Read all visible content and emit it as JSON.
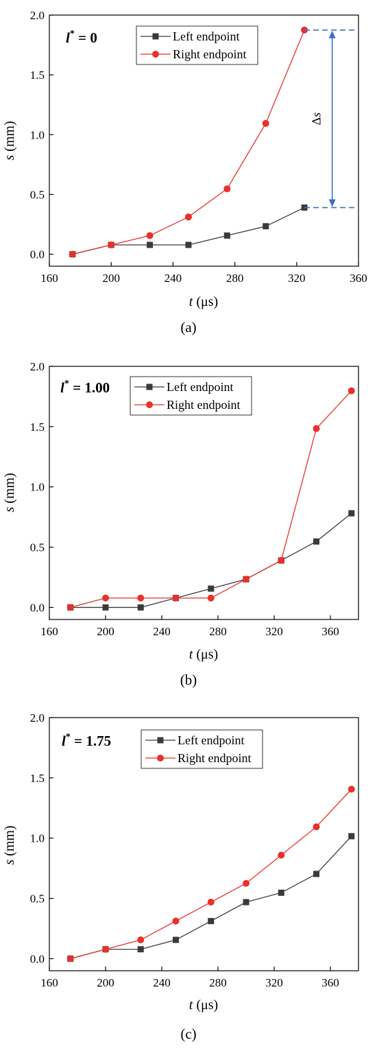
{
  "legend_labels": {
    "left": "Left endpoint",
    "right": "Right endpoint"
  },
  "colors": {
    "left": "#3a3a3a",
    "right": "#e8302c",
    "annotation": "#3a6fc4",
    "axis": "#000000"
  },
  "charts": [
    {
      "panel_label": "(a)",
      "lstar_value": "0",
      "chart_data": {
        "type": "line",
        "xlabel_var": "t",
        "xlabel_unit": "(μs)",
        "ylabel_var": "s",
        "ylabel_unit": "(mm)",
        "xlim": [
          160,
          360
        ],
        "ylim": [
          -0.1,
          2.0
        ],
        "xticks": [
          160,
          200,
          240,
          280,
          320,
          360
        ],
        "yticks": [
          0.0,
          0.5,
          1.0,
          1.5,
          2.0
        ],
        "legend_placement": "top-center",
        "series": [
          {
            "key": "left",
            "name": "Left endpoint",
            "marker": "square",
            "x": [
              175,
              200,
              225,
              250,
              275,
              300,
              325
            ],
            "y": [
              0.0,
              0.078,
              0.078,
              0.078,
              0.156,
              0.234,
              0.39
            ]
          },
          {
            "key": "right",
            "name": "Right endpoint",
            "marker": "circle",
            "x": [
              175,
              200,
              225,
              250,
              275,
              300,
              325
            ],
            "y": [
              0.0,
              0.078,
              0.156,
              0.312,
              0.547,
              1.094,
              1.875
            ]
          }
        ],
        "annotation": {
          "label": "Δs",
          "x_from": 325,
          "x_to": 360,
          "arrow_x": 343,
          "y_low": 0.39,
          "y_high": 1.875
        }
      }
    },
    {
      "panel_label": "(b)",
      "lstar_value": "1.00",
      "chart_data": {
        "type": "line",
        "xlabel_var": "t",
        "xlabel_unit": "(μs)",
        "ylabel_var": "s",
        "ylabel_unit": "(mm)",
        "xlim": [
          160,
          380
        ],
        "ylim": [
          -0.1,
          2.0
        ],
        "xticks": [
          160,
          200,
          240,
          280,
          320,
          360
        ],
        "yticks": [
          0.0,
          0.5,
          1.0,
          1.5,
          2.0
        ],
        "legend_placement": "top-center",
        "series": [
          {
            "key": "left",
            "name": "Left endpoint",
            "marker": "square",
            "x": [
              175,
              200,
              225,
              250,
              275,
              300,
              325,
              350,
              375
            ],
            "y": [
              0.0,
              0.0,
              0.0,
              0.078,
              0.156,
              0.234,
              0.39,
              0.547,
              0.781
            ]
          },
          {
            "key": "right",
            "name": "Right endpoint",
            "marker": "circle",
            "x": [
              175,
              200,
              225,
              250,
              275,
              300,
              325,
              350,
              375
            ],
            "y": [
              0.0,
              0.078,
              0.078,
              0.078,
              0.078,
              0.234,
              0.39,
              1.484,
              1.797
            ]
          }
        ]
      }
    },
    {
      "panel_label": "(c)",
      "lstar_value": "1.75",
      "chart_data": {
        "type": "line",
        "xlabel_var": "t",
        "xlabel_unit": "(μs)",
        "ylabel_var": "s",
        "ylabel_unit": "(mm)",
        "xlim": [
          160,
          380
        ],
        "ylim": [
          -0.1,
          2.0
        ],
        "xticks": [
          160,
          200,
          240,
          280,
          320,
          360
        ],
        "yticks": [
          0.0,
          0.5,
          1.0,
          1.5,
          2.0
        ],
        "legend_placement": "top-center",
        "series": [
          {
            "key": "left",
            "name": "Left endpoint",
            "marker": "square",
            "x": [
              175,
              200,
              225,
              250,
              275,
              300,
              325,
              350,
              375
            ],
            "y": [
              0.0,
              0.078,
              0.078,
              0.156,
              0.312,
              0.469,
              0.547,
              0.703,
              1.016
            ]
          },
          {
            "key": "right",
            "name": "Right endpoint",
            "marker": "circle",
            "x": [
              175,
              200,
              225,
              250,
              275,
              300,
              325,
              350,
              375
            ],
            "y": [
              0.0,
              0.078,
              0.156,
              0.312,
              0.469,
              0.625,
              0.859,
              1.094,
              1.406
            ]
          }
        ]
      }
    }
  ]
}
